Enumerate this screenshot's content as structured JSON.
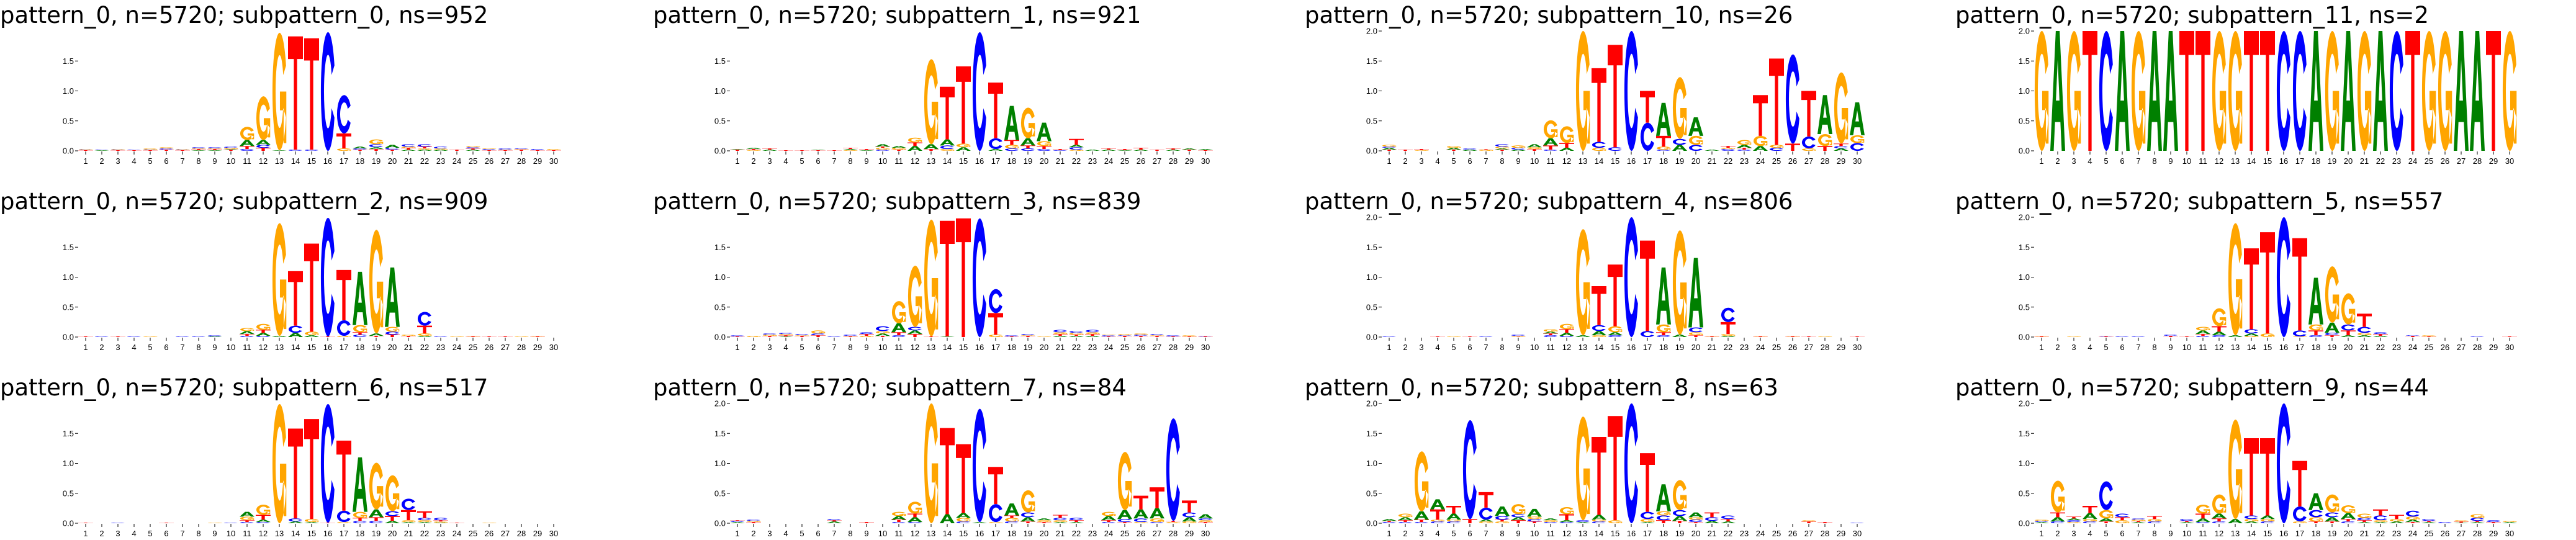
{
  "colors": {
    "A": "#008000",
    "C": "#0000ff",
    "G": "#ffa500",
    "T": "#ff0000"
  },
  "shared": {
    "x_tick_labels": [
      "1",
      "2",
      "3",
      "4",
      "5",
      "6",
      "7",
      "8",
      "9",
      "10",
      "11",
      "12",
      "13",
      "14",
      "15",
      "16",
      "17",
      "18",
      "19",
      "20",
      "21",
      "22",
      "23",
      "24",
      "25",
      "26",
      "27",
      "28",
      "29",
      "30"
    ]
  },
  "chart_data": [
    {
      "type": "sequence-logo",
      "title": "pattern_0, n=5720; subpattern_0, ns=952",
      "y_ticks": [
        "0.0",
        "0.5",
        "1.0",
        "1.5"
      ],
      "positions": [
        "T.01 C.01 G.01",
        "A.01 C.01",
        "T.01 C.01 G.01",
        "T.01 C.01",
        "T.01 C.01 G.02",
        "T.02 C.02 G.02",
        "T.01 C.01 G.01",
        "A.01 T.02 G.01 C.02",
        "A.01 T.02 G.01 C.02",
        "T.02 A.01 G.02 C.02",
        "C.03 T.05 A.1 G.22",
        "T.05 C.05 A.08 G.73",
        "A.01 G1.96",
        "C.02 T1.89",
        "C.02 T1.86",
        "C1.98",
        "G.04 T.25 C.64",
        "T.02 C.02 A.03",
        "T.03 A.03 C.05 G.08",
        "T.02 C.03 A.05",
        "A.02 T.03 G.02 C.04",
        "A.02 G.02 T.03 C.04",
        "A.02 G.02 C.03",
        "T.02",
        "A.02 T.02 C.02 G.02",
        "T.01 C.02 G.01",
        "T.01 G.01 C.02",
        "T.02 G.01 C.01",
        "T.01 C.02",
        "T.01 G.02"
      ]
    },
    {
      "type": "sequence-logo",
      "title": "pattern_0, n=5720; subpattern_1, ns=921",
      "y_ticks": [
        "0.0",
        "0.5",
        "1.0",
        "1.5"
      ],
      "positions": [
        "T.02 A.01",
        "G.01 T.02 A.02",
        "A.02 T.02",
        "T.01",
        "T.01",
        "T.01 A.01",
        "T.01",
        "G.01 A.02 T.02",
        "A.01 T.02",
        "C.02 G.03 T.02 A.04",
        "T.02 G.03 A.03",
        "A.08 T.06 G.08",
        "T.03 A.08 G1.42",
        "G.03 C.06 A.1 T.88",
        "A.06 G.06 T1.29",
        "C1.98",
        "A.03 C.18 T.93",
        "C.04 G.06 T.08 A.57",
        "C.04 T.05 A.12 G.51",
        "C.03 T.05 G.08 A.31",
        "C.01 T.02",
        "G.02 C.04 A.04 T.1",
        "A.02",
        "A.02 T.02",
        "A.01 T.02",
        "A.02 T.03",
        "T.02",
        "A.02 T.02",
        "T.02 A.02",
        "T.01 A.02"
      ]
    },
    {
      "type": "sequence-logo",
      "title": "pattern_0, n=5720; subpattern_10, ns=26",
      "y_ticks": [
        "0.0",
        "0.5",
        "1.0",
        "1.5",
        "2.0"
      ],
      "positions": [
        "T.02 A.03 C.02 G.03",
        "T.02",
        "G.01 T.02",
        "",
        "T.02 A.03 G.03",
        "A.02 C.02",
        "G.02 T.01",
        "T.02 A.02 G.03 C.04",
        "A.02 C.03 G.04",
        "T.03 G.03 A.05",
        "C.02 T.07 A.12 G.3",
        "A.05 T.08 G.28",
        "G2.0",
        "G.05 C.1 T1.23",
        "C.06 T1.71",
        "C2.0",
        "C.47 T.53",
        "C.02 G.05 T.18 A.55",
        "A.1 C.1 G1.03",
        "C.1 G.15 A.31",
        "A.02",
        "C.03 G.02 T.03",
        "C.02 T.03 A.05 G.08",
        "A.08 G.17 T.68",
        "C.05 G.05 T1.44",
        "T.12 C1.49",
        "G.04 C.2 T.76",
        "T.08 G.2 A.65",
        "A.04 C.04 T.04 G1.19",
        "C.13 G.13 A.55"
      ]
    },
    {
      "type": "sequence-logo",
      "title": "pattern_0, n=5720; subpattern_11, ns=2",
      "y_ticks": [
        "0.0",
        "0.5",
        "1.0",
        "1.5",
        "2.0"
      ],
      "positions": [
        "G2.0",
        "A2.0",
        "G2.0",
        "T2.0",
        "C2.0",
        "A2.0",
        "G2.0",
        "A2.0",
        "A2.0",
        "T2.0",
        "T2.0",
        "G2.0",
        "G2.0",
        "T2.0",
        "T2.0",
        "C2.0",
        "C2.0",
        "A2.0",
        "G2.0",
        "A2.0",
        "G2.0",
        "A2.0",
        "C2.0",
        "T2.0",
        "G2.0",
        "G2.0",
        "A2.0",
        "A2.0",
        "T2.0",
        "G2.0"
      ]
    },
    {
      "type": "sequence-logo",
      "title": "pattern_0, n=5720; subpattern_2, ns=909",
      "y_ticks": [
        "0.0",
        "0.5",
        "1.0",
        "1.5"
      ],
      "positions": [
        "T.01",
        "C.01",
        "T.01",
        "C.01",
        "G.01",
        "",
        "C.01",
        "C.01",
        "A.01 C.02",
        "",
        "C.02 T.03 A.05 G.05",
        "C.02 A.05 T.05 G.1",
        "A.02 G1.88",
        "A.07 C.12 T.91",
        "A.03 G.06 T1.47",
        "T.01 C1.98",
        "G.02 C.26 T.84",
        "C.04 T.04 G.12 A.89",
        "T.02 A.04 G1.73",
        "T.04 C.05 G.08 A.99",
        "T.02 G.02",
        "A.02 G.04 T.13 C.23",
        "C.01",
        "G.01",
        "T.01 G.01",
        "T.01",
        "T.01",
        "G.01",
        "T.01 G.01",
        ""
      ]
    },
    {
      "type": "sequence-logo",
      "title": "pattern_0, n=5720; subpattern_3, ns=839",
      "y_ticks": [
        "0.0",
        "0.5",
        "1.0",
        "1.5"
      ],
      "positions": [
        "T.01 C.02",
        "G.02",
        "T.02 G.02 C.02",
        "A.01 T.02 G.02 C.02",
        "T.02 G.01 C.02",
        "T.03 C.03 G.05",
        "C.01",
        "T.01 G.01 C.02",
        "G.02 T.03 C.03",
        "T.02 A.04 G.04 C.08",
        "C.03 T.05 A.15 G.37",
        "T.05 A.06 C.06 G1.02",
        "T.01 G1.95",
        "A.01 T1.93",
        "T1.98",
        "C1.98",
        "G.04 T.36 C.4",
        "T.01 C.02",
        "T.02 G.01 C.02",
        "G.01",
        "A.02 T.03 G.03 C.04",
        "A.02 T.02 G.03 C.03",
        "A.02 T.03 G.03 C.04",
        "T.01 C.02 G.01",
        "T.02 C.01 G.02",
        "T.02 C.02 G.02",
        "T.02 G.01 C.02",
        "T.01 C.02",
        "T.01 G.02",
        "T.01 C.01"
      ]
    },
    {
      "type": "sequence-logo",
      "title": "pattern_0, n=5720; subpattern_4, ns=806",
      "y_ticks": [
        "0.0",
        "0.5",
        "1.0",
        "1.5",
        "2.0"
      ],
      "positions": [
        "C.01",
        "",
        "",
        "T.01",
        "G.01",
        "T.01",
        "C.01",
        "",
        "G.01 T.01 C.02",
        "",
        "C.03 T.03 A.03 G.04",
        "C.02 A.05 T.06 G.09",
        "A.03 G1.77",
        "G.03 A.07 C.1 T.65",
        "C.03 A.05 G.1 T1.03",
        "C2.0",
        "C.1 T1.51",
        "C.03 T.05 G.13 A.95",
        "A.04 G1.74",
        "T.03 G.05 C.08 A1.16",
        "T.01 G.01",
        "A.02 G.03 T.2 C.24",
        "",
        "T.01 G.01",
        "",
        "T.01 G.01",
        "T.01",
        "G.01",
        "",
        "T.01"
      ]
    },
    {
      "type": "sequence-logo",
      "title": "pattern_0, n=5720; subpattern_5, ns=557",
      "y_ticks": [
        "0.0",
        "0.5",
        "1.0",
        "1.5",
        "2.0"
      ],
      "positions": [
        "T.01 G.01",
        "",
        "G.01",
        "",
        "T.01 C.01",
        "C.01",
        "C.01",
        "",
        "T.02 C.02",
        "T.01",
        "C.02 T.03 A.06 G.06",
        "C.03 A.06 T.09 G.3",
        "A.03 G1.87",
        "G.02 A.04 C.07 T1.35",
        "G.06 T1.69",
        "C2.0",
        "G.01 C.1 T1.54",
        "C.03 T.08 G.1 A.78",
        "T.03 C.04 A.17 G.94",
        "A.03 T.08 C.1 G.52",
        "A.03 G.04 C.1 T.22",
        "A.02 T.03 C.03",
        "",
        "T.02 C.01",
        "T.01 G.02",
        "",
        "",
        "C.01",
        "",
        "T.01"
      ]
    },
    {
      "type": "sequence-logo",
      "title": "pattern_0, n=5720; subpattern_6, ns=517",
      "y_ticks": [
        "0.0",
        "0.5",
        "1.0",
        "1.5"
      ],
      "positions": [
        "T.01",
        "",
        "C.01",
        "",
        "",
        "T.01",
        "",
        "",
        "G.01",
        "C.01",
        "C.02 T.03 G.06 A.08",
        "C.02 A.04 T.08 G.17",
        "G1.99",
        "A.03 C.05 T1.5",
        "A.02 G.05 T1.67",
        "T.01 C1.98",
        "G.02 C.19 T1.17",
        "C.04 T.05 G.1 A.91",
        "C.04 T.06 A.13 G.78",
        "A.04 T.08 C.08 G.6",
        "A.02 G.03 T.17 C.19",
        "A.02 G.03 C.04 T.11",
        "A.01 G.02 T.02 C.04",
        "T.01",
        "",
        "G.01",
        "",
        "",
        "",
        ""
      ]
    },
    {
      "type": "sequence-logo",
      "title": "pattern_0, n=5720; subpattern_7, ns=84",
      "y_ticks": [
        "0.0",
        "0.5",
        "1.0",
        "1.5",
        "2.0"
      ],
      "positions": [
        "A.02 C.02 T.01",
        "T.02 G.02 C.02",
        "",
        "",
        "",
        "",
        "A.03 T.02 C.02",
        "",
        "T.02",
        "",
        "C.02 T.04 A.06 G.07",
        "C.02 A.08 T.06 G.2",
        "G2.0",
        "A.15 T1.44",
        "C.03 G.06 A.08 T1.15",
        "A.02 C1.89",
        "G.02 C.3 T.62",
        "C.03 G.06 T.04 A.2",
        "T.03 A.07 C.08 G.37",
        "T.02 G.03 A.03",
        "A.02 G.03 C.04 T.05",
        "A.02 T.03 C.04",
        "",
        "C.02 T.03 A.07 G.07",
        "T.02 C.05 A.15 G.97",
        "G.02 C.06 A.15 T.23",
        "C.02 G.06 A.17 T.35",
        "G.02 T.02 C1.71",
        "G.03 A.07 C.08 T.2",
        "T.02 G.03 C.03 A.07"
      ]
    },
    {
      "type": "sequence-logo",
      "title": "pattern_0, n=5720; subpattern_8, ns=63",
      "y_ticks": [
        "0.0",
        "0.5",
        "1.0",
        "1.5",
        "2.0"
      ],
      "positions": [
        "C.02 T.02 A.03",
        "C.02 T.03 A.05 G.06",
        "C.02 T.04 A.14 G1.0",
        "C.03 G.03 T.17 A.17",
        "C.03 G.03 A.1 T.13",
        "T.07 C1.65",
        "G.03 A.03 C.2 T.26",
        "G.03 T.03 C.06 A.16",
        "T.05 A.05 C.05 G.17",
        "T.03 C.04 G.04 A.13",
        "C.02 G.03 A.03",
        "C.02 A.03 T.1 G.12",
        "A.02 C.03 G1.73",
        "C.03 G.03 A.08 T1.3",
        "G.05 T1.74",
        "C2.0",
        "A.02 G.05 C.12 T.98",
        "T.05 C.08 G.07 A.45",
        "T.04 A.08 C.1 G.5",
        "T.02 C.04 G.04 A.08",
        "A.04 C.06 T.08",
        "A.03 T.04 C.06",
        "",
        "",
        "",
        "",
        "T.03 G.02",
        "T.02",
        "",
        "C.01"
      ]
    },
    {
      "type": "sequence-logo",
      "title": "pattern_0, n=5720; subpattern_9, ns=44",
      "y_ticks": [
        "0.0",
        "0.5",
        "1.0",
        "1.5",
        "2.0"
      ],
      "positions": [
        "A.02 C.02 G.02",
        "C.03 A.07 T.08 G.53",
        "G.02 C.03 A.03 T.03",
        "C.03 G.04 A.1 T.12",
        "T.03 A.05 G.14 C.48",
        "G.05 T.05 C.06",
        "A.02 T.02 G.02 C.02",
        "C.03 G.04 T.05",
        "",
        "A.02 T.02 C.03",
        "C.02 A.06 T.08 G.15",
        "C.03 T.05 A.08 G.32",
        "A.07 G1.66",
        "A.03 G.04 C.06 T1.29",
        "C.03 G.04 A.06 T1.29",
        "C2.0",
        "G.03 C.25 T.76",
        "T.03 G.07 C.12 A.28",
        "T.03 A.07 C.08 G.3",
        "C.03 T.04 A.1 G.13",
        "A.02 T.03 C.04 G.07",
        "A.02 G.03 C.08 T.1",
        "A.03 G.04 T.07",
        "T.02 A.04 G.05 C.1",
        "A.02 T.02 C.03",
        "C.02",
        "A.01 T.02 G.02",
        "A.02 T.02 C.05 G.06",
        "T.02 C.03",
        "A.02 G.02"
      ]
    }
  ]
}
